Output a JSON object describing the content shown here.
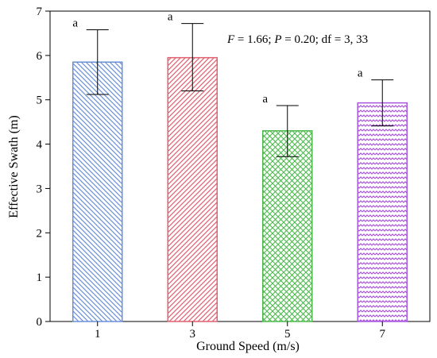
{
  "chart_data": {
    "type": "bar",
    "categories": [
      "1",
      "3",
      "5",
      "7"
    ],
    "values": [
      5.85,
      5.95,
      4.3,
      4.93
    ],
    "error_lower": [
      5.12,
      5.2,
      3.72,
      4.41
    ],
    "error_upper": [
      6.58,
      6.72,
      4.87,
      5.45
    ],
    "significance_letters": [
      "a",
      "a",
      "a",
      "a"
    ],
    "xlabel": "Ground Speed (m/s)",
    "ylabel": "Effective Swath (m)",
    "ylim": [
      0,
      7
    ],
    "yticks": [
      "0",
      "1",
      "2",
      "3",
      "4",
      "5",
      "6",
      "7"
    ],
    "annotation": {
      "f_italic": "F",
      "f_value": " = 1.66; ",
      "p_italic": "P",
      "p_value": " = 0.20; df = 3, 33"
    },
    "grid": false,
    "legend": "none",
    "bar_colors": [
      "#6a8fd8",
      "#e06070",
      "#4cb84c",
      "#a855e0"
    ],
    "bar_patterns": [
      "diagonal-back",
      "diagonal-forward",
      "crosshatch",
      "zigzag"
    ]
  }
}
